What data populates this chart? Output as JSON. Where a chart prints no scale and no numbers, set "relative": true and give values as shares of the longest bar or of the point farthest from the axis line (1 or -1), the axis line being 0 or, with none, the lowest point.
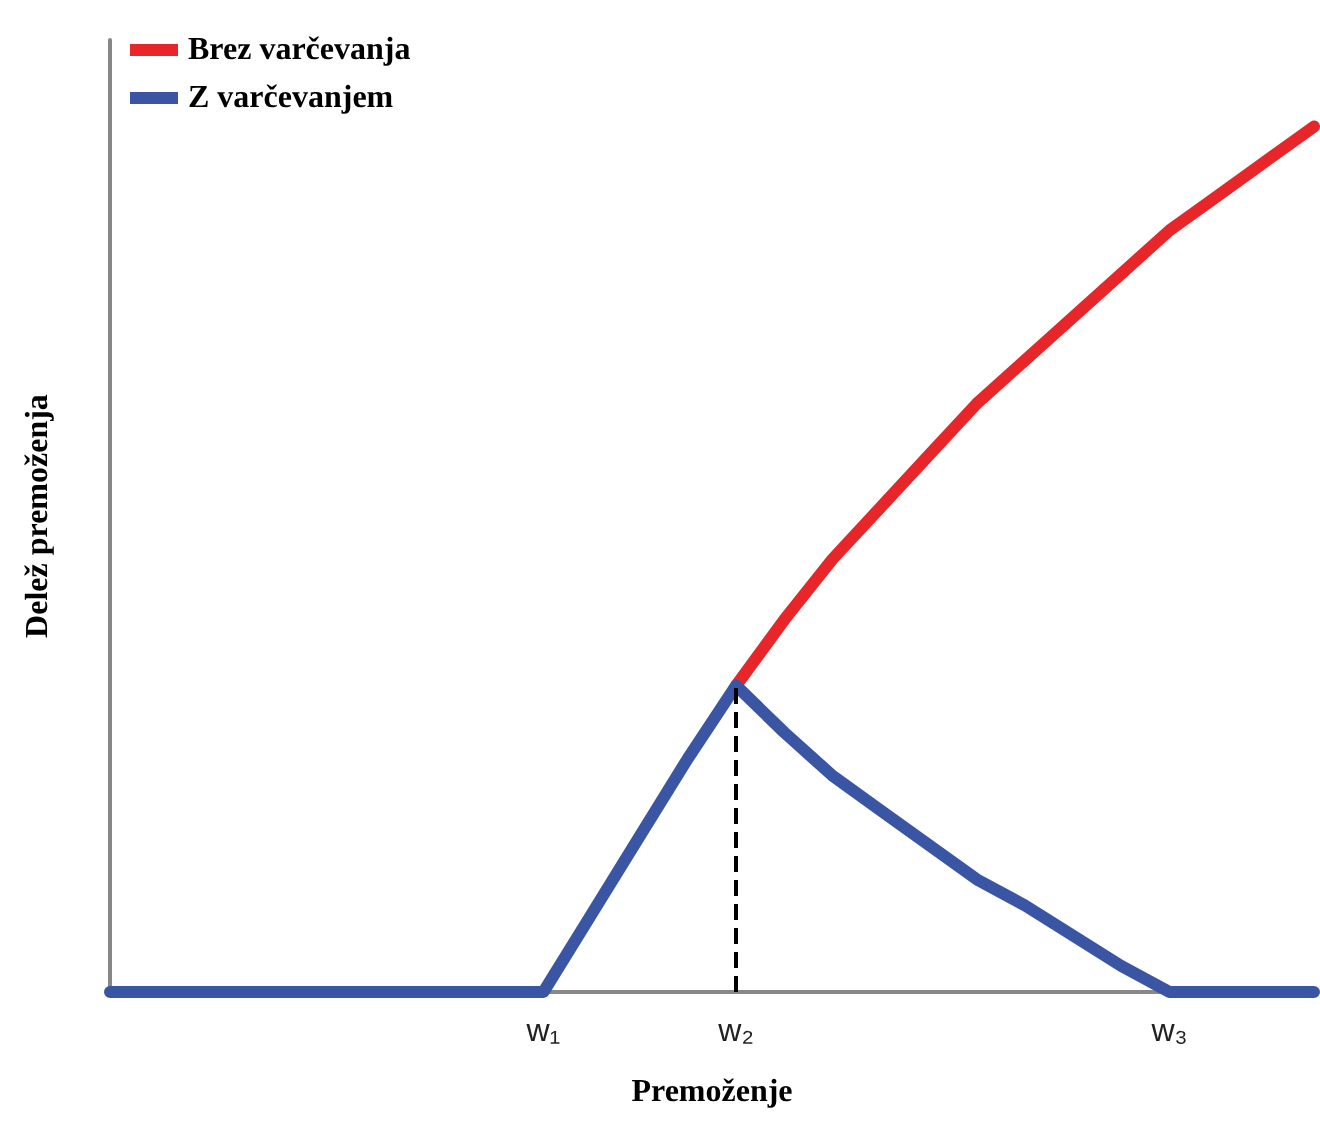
{
  "chart_data": {
    "type": "line",
    "relative": true,
    "xlabel": "Premoženje",
    "ylabel": "Delež premoženja",
    "categories": [
      null,
      null,
      null,
      null,
      null,
      null,
      null,
      null,
      null,
      "w₁",
      null,
      null,
      null,
      "w₂",
      null,
      null,
      null,
      null,
      null,
      null,
      null,
      null,
      "w₃",
      null,
      null,
      null
    ],
    "series": [
      {
        "name": "Brez varčevanja",
        "color": "#e8262a",
        "values": [
          null,
          null,
          null,
          null,
          null,
          null,
          null,
          null,
          null,
          null,
          null,
          null,
          null,
          0.354,
          0.43,
          0.5,
          0.56,
          0.62,
          0.68,
          0.73,
          0.78,
          0.83,
          0.88,
          0.92,
          0.96,
          1
        ]
      },
      {
        "name": "Z varčevanjem",
        "color": "#3a55a4",
        "values": [
          0,
          0,
          0,
          0,
          0,
          0,
          0,
          0,
          0,
          0,
          0.09,
          0.18,
          0.27,
          0.354,
          0.3,
          0.25,
          0.21,
          0.17,
          0.13,
          0.1,
          0.065,
          0.03,
          0,
          0,
          0,
          0
        ]
      }
    ],
    "ref_lines": [
      {
        "axis": "x",
        "value": "w₂",
        "line_style": "dashed",
        "color": "#000000"
      }
    ],
    "legend": "top left",
    "grid": false,
    "marker": "none",
    "line_style": "solid"
  }
}
